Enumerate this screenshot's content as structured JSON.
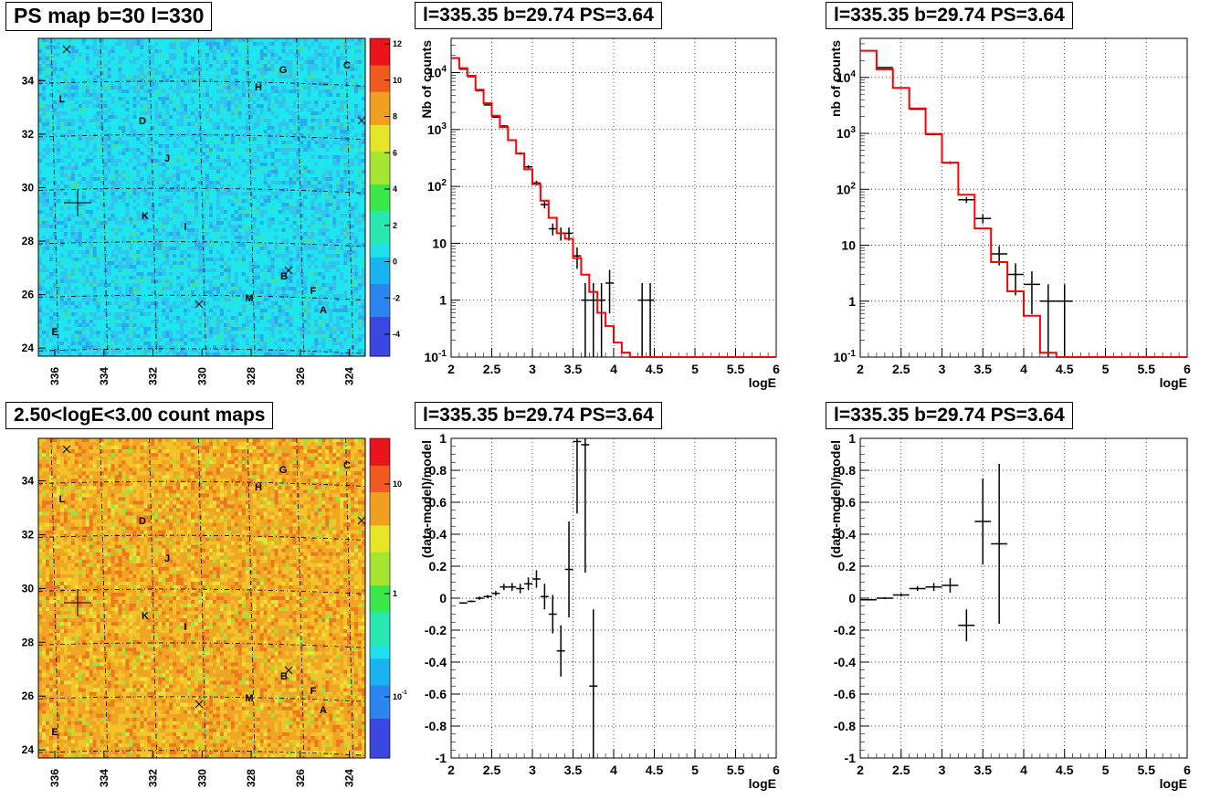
{
  "colors": {
    "hist": "#000000",
    "model": "#ff0000",
    "grid": "#000000"
  },
  "map_panels": [
    {
      "title": "PS map b=30 l=330",
      "type": "heatmap",
      "palette": "ps",
      "x_ticks": [
        "336",
        "334",
        "332",
        "330",
        "328",
        "326",
        "324"
      ],
      "y_ticks": [
        "24",
        "26",
        "28",
        "30",
        "32",
        "34"
      ],
      "z_ticks": [
        "-4",
        "-2",
        "0",
        "2",
        "4",
        "6",
        "8",
        "10",
        "12"
      ],
      "source_labels": [
        "G",
        "C",
        "H",
        "L",
        "D",
        "J",
        "K",
        "I",
        "B",
        "F",
        "M",
        "A",
        "E"
      ]
    },
    {
      "title": "2.50<logE<3.00 count maps",
      "type": "heatmap",
      "palette": "counts",
      "x_ticks": [
        "336",
        "334",
        "332",
        "330",
        "328",
        "326",
        "324"
      ],
      "y_ticks": [
        "24",
        "26",
        "28",
        "30",
        "32",
        "34"
      ],
      "z_ticks": [
        "10",
        "1",
        "10-1"
      ],
      "source_labels": [
        "G",
        "C",
        "H",
        "L",
        "D",
        "J",
        "K",
        "I",
        "B",
        "F",
        "M",
        "A",
        "E"
      ]
    }
  ],
  "chart_data": [
    {
      "title": "l=335.35 b=29.74 PS=3.64",
      "type": "line",
      "xlabel": "logE",
      "ylabel": "Nb of counts",
      "xlim": [
        2,
        6
      ],
      "ylim": [
        0.1,
        40000
      ],
      "ylog": true,
      "grid": true,
      "x_tick_labels": [
        "2",
        "2.5",
        "3",
        "3.5",
        "4",
        "4.5",
        "5",
        "5.5",
        "6"
      ],
      "y_tick_labels": [
        "10-1",
        "1",
        "10",
        "102",
        "103",
        "104"
      ],
      "series": [
        {
          "kind": "points",
          "x": [
            2.05,
            2.15,
            2.25,
            2.35,
            2.45,
            2.55,
            2.65,
            2.75,
            2.85,
            2.95,
            3.05,
            3.15,
            3.25,
            3.35,
            3.45,
            3.55,
            3.65,
            3.75,
            3.85,
            3.95,
            4.35,
            4.45
          ],
          "y": [
            18000,
            11500,
            8500,
            4800,
            2700,
            1650,
            1150,
            650,
            380,
            220,
            115,
            48,
            18,
            15,
            15,
            6,
            1,
            1,
            1,
            2,
            1,
            1
          ]
        },
        {
          "kind": "step",
          "x": [
            2.0,
            2.1,
            2.2,
            2.3,
            2.4,
            2.5,
            2.6,
            2.7,
            2.8,
            2.9,
            3.0,
            3.1,
            3.2,
            3.3,
            3.4,
            3.5,
            3.6,
            3.7,
            3.8,
            3.9,
            4.0,
            4.1,
            4.2,
            6.0
          ],
          "y": [
            18000,
            12000,
            8800,
            5000,
            2900,
            1750,
            1100,
            650,
            380,
            200,
            110,
            56,
            28,
            15,
            12,
            5.5,
            2.8,
            1.4,
            0.6,
            0.35,
            0.18,
            0.12,
            0.08,
            0.08
          ]
        }
      ]
    },
    {
      "title": "l=335.35 b=29.74 PS=3.64",
      "type": "line",
      "xlabel": "logE",
      "ylabel": "nb of counts",
      "xlim": [
        2,
        6
      ],
      "ylim": [
        0.1,
        50000
      ],
      "ylog": true,
      "grid": true,
      "x_tick_labels": [
        "2",
        "2.5",
        "3",
        "3.5",
        "4",
        "4.5",
        "5",
        "5.5",
        "6"
      ],
      "y_tick_labels": [
        "10-1",
        "1",
        "10",
        "102",
        "103",
        "104"
      ],
      "series": [
        {
          "kind": "points",
          "x": [
            2.1,
            2.3,
            2.5,
            2.7,
            2.9,
            3.1,
            3.3,
            3.5,
            3.7,
            3.9,
            4.1,
            4.3,
            4.5
          ],
          "y": [
            30000,
            15000,
            6500,
            2700,
            950,
            300,
            65,
            30,
            7,
            3,
            2,
            1,
            1
          ]
        },
        {
          "kind": "step",
          "x": [
            2.0,
            2.2,
            2.4,
            2.6,
            2.8,
            3.0,
            3.2,
            3.4,
            3.6,
            3.8,
            4.0,
            4.2,
            4.4,
            6.0
          ],
          "y": [
            30000,
            14000,
            6500,
            2800,
            980,
            300,
            80,
            20,
            5,
            1.5,
            0.55,
            0.12,
            0.08,
            0.08
          ]
        }
      ]
    },
    {
      "title": "l=335.35 b=29.74 PS=3.64",
      "type": "scatter",
      "xlabel": "logE",
      "ylabel": "(data-model)/model",
      "xlim": [
        2,
        6
      ],
      "ylim": [
        -1,
        1
      ],
      "grid": true,
      "x_tick_labels": [
        "2",
        "2.5",
        "3",
        "3.5",
        "4",
        "4.5",
        "5",
        "5.5",
        "6"
      ],
      "y_tick_labels": [
        "-1",
        "-0.8",
        "-0.6",
        "-0.4",
        "-0.2",
        "0",
        "0.2",
        "0.4",
        "0.6",
        "0.8",
        "1"
      ],
      "series": [
        {
          "kind": "errorbars",
          "x": [
            2.15,
            2.25,
            2.35,
            2.45,
            2.55,
            2.65,
            2.75,
            2.85,
            2.95,
            3.05,
            3.15,
            3.25,
            3.35,
            3.45,
            3.55,
            3.65,
            3.75
          ],
          "y": [
            -0.03,
            -0.02,
            0.0,
            0.01,
            0.03,
            0.07,
            0.07,
            0.06,
            0.09,
            0.12,
            0.01,
            -0.1,
            -0.33,
            0.18,
            0.98,
            0.96,
            -0.55
          ],
          "err": [
            0.005,
            0.005,
            0.01,
            0.01,
            0.015,
            0.02,
            0.025,
            0.03,
            0.04,
            0.055,
            0.08,
            0.12,
            0.16,
            0.3,
            0.45,
            0.8,
            0.48
          ]
        }
      ]
    },
    {
      "title": "l=335.35 b=29.74 PS=3.64",
      "type": "scatter",
      "xlabel": "logE",
      "ylabel": "(data-model)/model",
      "xlim": [
        2,
        6
      ],
      "ylim": [
        -1,
        1
      ],
      "grid": true,
      "x_tick_labels": [
        "2",
        "2.5",
        "3",
        "3.5",
        "4",
        "4.5",
        "5",
        "5.5",
        "6"
      ],
      "y_tick_labels": [
        "-1",
        "-0.8",
        "-0.6",
        "-0.4",
        "-0.2",
        "0",
        "0.2",
        "0.4",
        "0.6",
        "0.8",
        "1"
      ],
      "series": [
        {
          "kind": "errorbars",
          "x": [
            2.1,
            2.3,
            2.5,
            2.7,
            2.9,
            3.1,
            3.3,
            3.5,
            3.7
          ],
          "y": [
            -0.01,
            0.0,
            0.02,
            0.06,
            0.07,
            0.08,
            -0.17,
            0.48,
            0.34
          ],
          "err": [
            0.004,
            0.006,
            0.01,
            0.015,
            0.025,
            0.045,
            0.1,
            0.27,
            0.5
          ]
        }
      ]
    }
  ]
}
